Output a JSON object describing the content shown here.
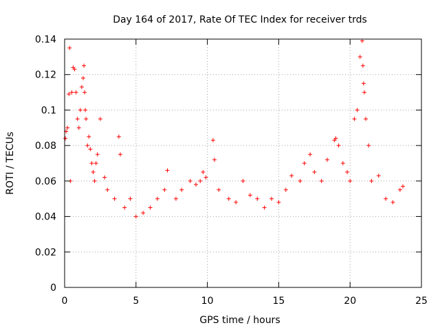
{
  "chart_data": {
    "type": "scatter",
    "title": "Day 164 of 2017, Rate Of TEC Index for receiver trds",
    "xlabel": "GPS time / hours",
    "ylabel": "ROTI / TECUs",
    "xlim": [
      0,
      25
    ],
    "ylim": [
      0,
      0.14
    ],
    "x_ticks": [
      0,
      5,
      10,
      15,
      20,
      25
    ],
    "y_ticks": [
      0,
      0.02,
      0.04,
      0.06,
      0.08,
      0.1,
      0.12,
      0.14
    ],
    "y_tick_labels": [
      "0",
      "0.02",
      "0.04",
      "0.06",
      "0.08",
      "0.1",
      "0.12",
      "0.14"
    ],
    "grid": true,
    "marker": "+",
    "series": [
      {
        "name": "ROTI",
        "color": "#ff0000",
        "x": [
          0.05,
          0.1,
          0.2,
          0.3,
          0.35,
          0.4,
          0.5,
          0.6,
          0.7,
          0.8,
          0.9,
          1.0,
          1.1,
          1.2,
          1.3,
          1.35,
          1.4,
          1.45,
          1.5,
          1.6,
          1.7,
          1.8,
          1.9,
          2.0,
          2.1,
          2.2,
          2.3,
          2.5,
          2.8,
          3.0,
          3.5,
          3.8,
          3.9,
          4.2,
          4.6,
          5.0,
          5.5,
          6.0,
          6.5,
          7.0,
          7.2,
          7.8,
          8.2,
          8.8,
          9.2,
          9.5,
          9.7,
          9.9,
          10.4,
          10.5,
          10.8,
          11.5,
          12.0,
          12.5,
          13.0,
          13.5,
          14.0,
          14.5,
          15.0,
          15.5,
          15.9,
          16.5,
          16.8,
          17.2,
          17.5,
          18.0,
          18.4,
          18.9,
          19.0,
          19.2,
          19.5,
          19.8,
          20.0,
          20.3,
          20.5,
          20.7,
          20.85,
          20.9,
          20.95,
          21.0,
          21.1,
          21.3,
          21.5,
          22.0,
          22.5,
          23.0,
          23.5,
          23.7
        ],
        "y": [
          0.084,
          0.088,
          0.09,
          0.109,
          0.135,
          0.06,
          0.11,
          0.124,
          0.123,
          0.11,
          0.095,
          0.09,
          0.1,
          0.113,
          0.118,
          0.125,
          0.11,
          0.1,
          0.095,
          0.08,
          0.085,
          0.078,
          0.07,
          0.065,
          0.06,
          0.07,
          0.075,
          0.095,
          0.062,
          0.055,
          0.05,
          0.085,
          0.075,
          0.045,
          0.05,
          0.04,
          0.042,
          0.045,
          0.05,
          0.055,
          0.066,
          0.05,
          0.055,
          0.06,
          0.058,
          0.06,
          0.065,
          0.062,
          0.083,
          0.072,
          0.055,
          0.05,
          0.048,
          0.06,
          0.052,
          0.05,
          0.045,
          0.05,
          0.048,
          0.055,
          0.063,
          0.06,
          0.07,
          0.075,
          0.065,
          0.06,
          0.072,
          0.083,
          0.084,
          0.08,
          0.07,
          0.065,
          0.06,
          0.095,
          0.1,
          0.13,
          0.139,
          0.125,
          0.115,
          0.11,
          0.095,
          0.08,
          0.06,
          0.063,
          0.05,
          0.048,
          0.055,
          0.057
        ]
      }
    ]
  }
}
